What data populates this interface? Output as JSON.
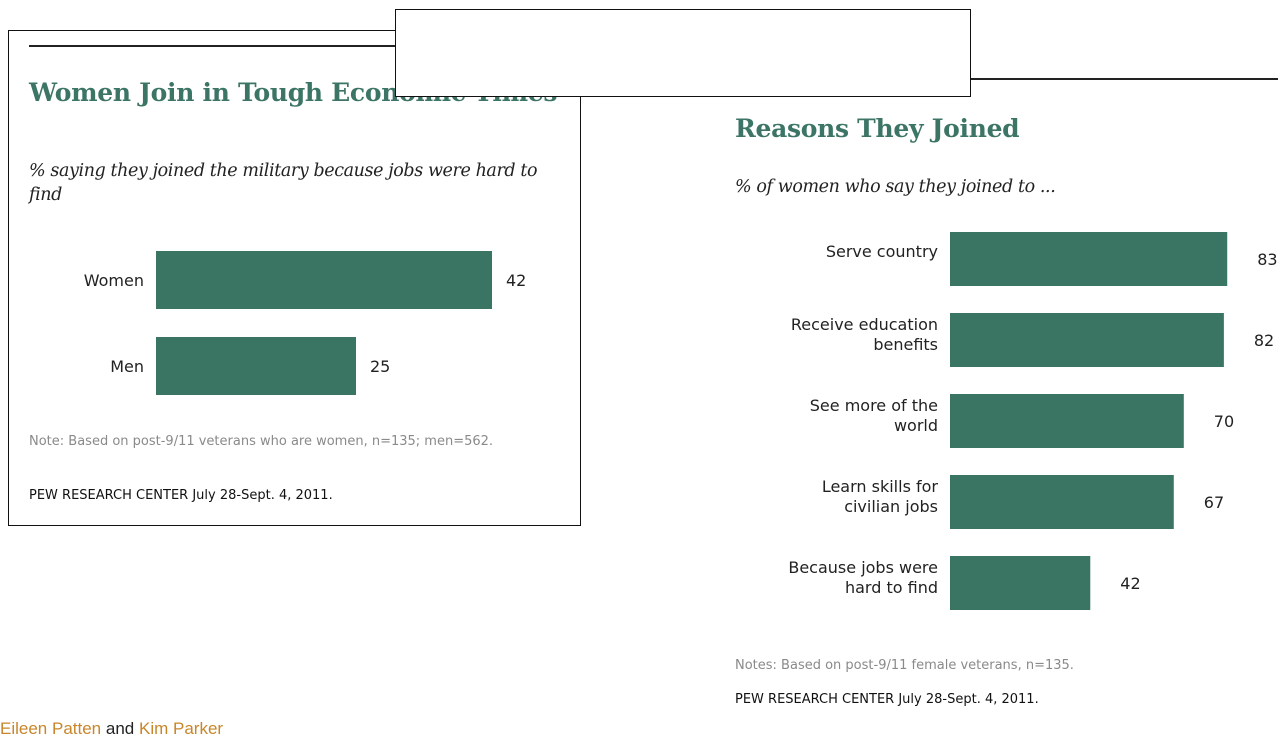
{
  "left": {
    "title": "Women Join in Tough Economic Times",
    "subtitle": "% saying they joined the military because jobs were hard to find",
    "note": "Note: Based on post-9/11 veterans who are women, n=135; men=562.",
    "source": "PEW RESEARCH CENTER July 28-Sept. 4, 2011."
  },
  "right": {
    "title": "Reasons They Joined",
    "subtitle": "% of women who say they joined to ...",
    "note": "Notes: Based on post-9/11 female veterans, n=135.",
    "source": "PEW RESEARCH CENTER July 28-Sept. 4, 2011."
  },
  "footer": {
    "author1": "Eileen Patten",
    "and": "and",
    "author2": "Kim Parker"
  },
  "colors": {
    "bar": "#3a7564",
    "title": "#3c7565",
    "link": "#c8862a"
  },
  "chart_data": [
    {
      "type": "bar",
      "orientation": "horizontal",
      "title": "Women Join in Tough Economic Times",
      "subtitle": "% saying they joined the military because jobs were hard to find",
      "categories": [
        "Women",
        "Men"
      ],
      "values": [
        42,
        25
      ],
      "xlim": [
        0,
        100
      ],
      "grid": false,
      "legend": "none"
    },
    {
      "type": "bar",
      "orientation": "horizontal",
      "title": "Reasons They Joined",
      "subtitle": "% of women who say they joined to ...",
      "categories": [
        [
          "Serve country"
        ],
        [
          "Receive education",
          "benefits"
        ],
        [
          "See more of the",
          "world"
        ],
        [
          "Learn skills for",
          "civilian jobs"
        ],
        [
          "Because jobs were",
          "hard to find"
        ]
      ],
      "values": [
        83,
        82,
        70,
        67,
        42
      ],
      "xlim": [
        0,
        100
      ],
      "grid": false,
      "legend": "none"
    }
  ]
}
